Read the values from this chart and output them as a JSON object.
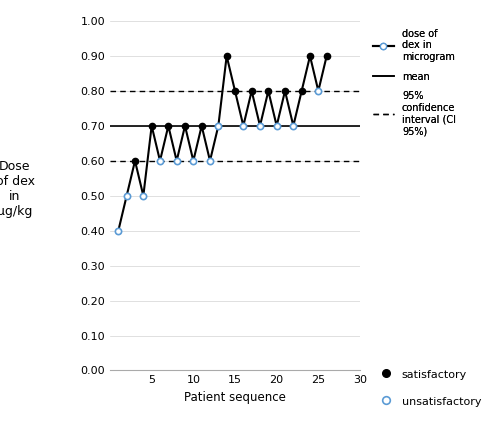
{
  "x": [
    1,
    2,
    3,
    4,
    5,
    6,
    7,
    8,
    9,
    10,
    11,
    12,
    13,
    14,
    15,
    16,
    17,
    18,
    19,
    20,
    21,
    22,
    23,
    24,
    25,
    26
  ],
  "y": [
    0.4,
    0.5,
    0.6,
    0.5,
    0.7,
    0.6,
    0.7,
    0.6,
    0.7,
    0.6,
    0.7,
    0.6,
    0.7,
    0.9,
    0.8,
    0.7,
    0.8,
    0.7,
    0.8,
    0.7,
    0.8,
    0.7,
    0.8,
    0.9,
    0.8,
    0.9
  ],
  "satisfactory": [
    false,
    false,
    true,
    false,
    true,
    false,
    true,
    false,
    true,
    false,
    true,
    false,
    false,
    true,
    true,
    false,
    true,
    false,
    true,
    false,
    true,
    false,
    true,
    true,
    false,
    true
  ],
  "mean_line": 0.7,
  "ci_upper": 0.8,
  "ci_lower": 0.6,
  "xlim": [
    0,
    30
  ],
  "ylim": [
    0.0,
    1.0
  ],
  "xticks": [
    5,
    10,
    15,
    20,
    25,
    30
  ],
  "yticks": [
    0.0,
    0.1,
    0.2,
    0.3,
    0.4,
    0.5,
    0.6,
    0.7,
    0.8,
    0.9,
    1.0
  ],
  "xlabel": "Patient sequence",
  "ylabel_lines": [
    "Dose",
    "of dex",
    "in",
    "μg/kg"
  ],
  "line_color": "#000000",
  "satisfactory_color": "#000000",
  "unsatisfactory_color": "#5b9bd5",
  "mean_color": "#000000",
  "ci_color": "#000000",
  "legend_line_label": "dose of\ndex in\nmicrogram",
  "legend_mean_label": "mean",
  "legend_ci_label": "95%\nconfidence\ninterval (CI\n95%)",
  "legend_sat_label": "satisfactory",
  "legend_unsat_label": "unsatisfactory",
  "background_color": "#ffffff",
  "grid_color": "#d3d3d3"
}
